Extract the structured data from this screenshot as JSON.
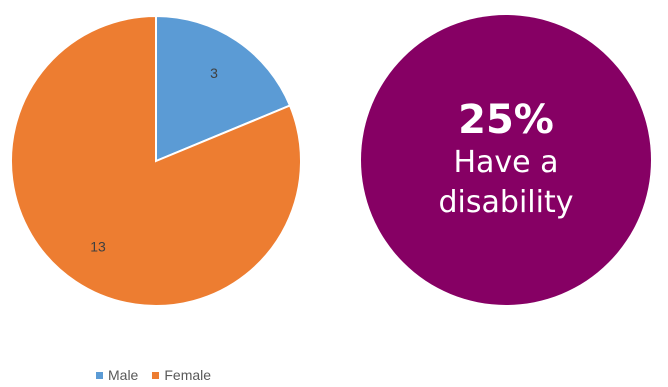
{
  "chart_data": {
    "type": "pie",
    "categories": [
      "Male",
      "Female"
    ],
    "values": [
      3,
      13
    ],
    "data_labels": [
      "3",
      "13"
    ],
    "colors": [
      "#5B9BD5",
      "#ED7D31"
    ],
    "legend_position": "bottom",
    "title": ""
  },
  "legend": {
    "items": [
      {
        "label": "Male",
        "color": "#5B9BD5"
      },
      {
        "label": "Female",
        "color": "#ED7D31"
      }
    ]
  },
  "badge": {
    "value": "25%",
    "line1": "Have a",
    "line2": "disability",
    "color": "#860064"
  }
}
